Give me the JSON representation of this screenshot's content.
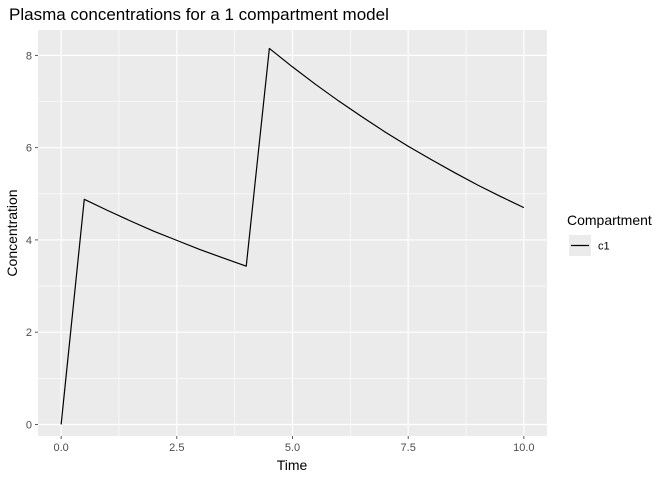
{
  "chart_data": {
    "type": "line",
    "title": "Plasma concentrations for a 1 compartment model",
    "xlabel": "Time",
    "ylabel": "Concentration",
    "xlim": [
      -0.5,
      10.5
    ],
    "ylim": [
      -0.25,
      8.55
    ],
    "x_ticks": [
      0.0,
      2.5,
      5.0,
      7.5,
      10.0
    ],
    "x_tick_labels": [
      "0.0",
      "2.5",
      "5.0",
      "7.5",
      "10.0"
    ],
    "y_ticks": [
      0,
      2,
      4,
      6,
      8
    ],
    "y_tick_labels": [
      "0",
      "2",
      "4",
      "6",
      "8"
    ],
    "grid": true,
    "legend_position": "right",
    "legend_title": "Compartment",
    "series": [
      {
        "name": "c1",
        "color": "#000000",
        "x": [
          0.0,
          0.5,
          1.0,
          1.5,
          2.0,
          2.5,
          3.0,
          3.5,
          4.0,
          4.5,
          5.0,
          5.5,
          6.0,
          6.5,
          7.0,
          7.5,
          8.0,
          8.5,
          9.0,
          9.5,
          10.0
        ],
        "y": [
          0.0,
          4.88,
          4.64,
          4.41,
          4.19,
          3.99,
          3.79,
          3.61,
          3.43,
          8.15,
          7.75,
          7.37,
          7.01,
          6.67,
          6.34,
          6.03,
          5.74,
          5.46,
          5.19,
          4.94,
          4.7
        ]
      }
    ]
  }
}
